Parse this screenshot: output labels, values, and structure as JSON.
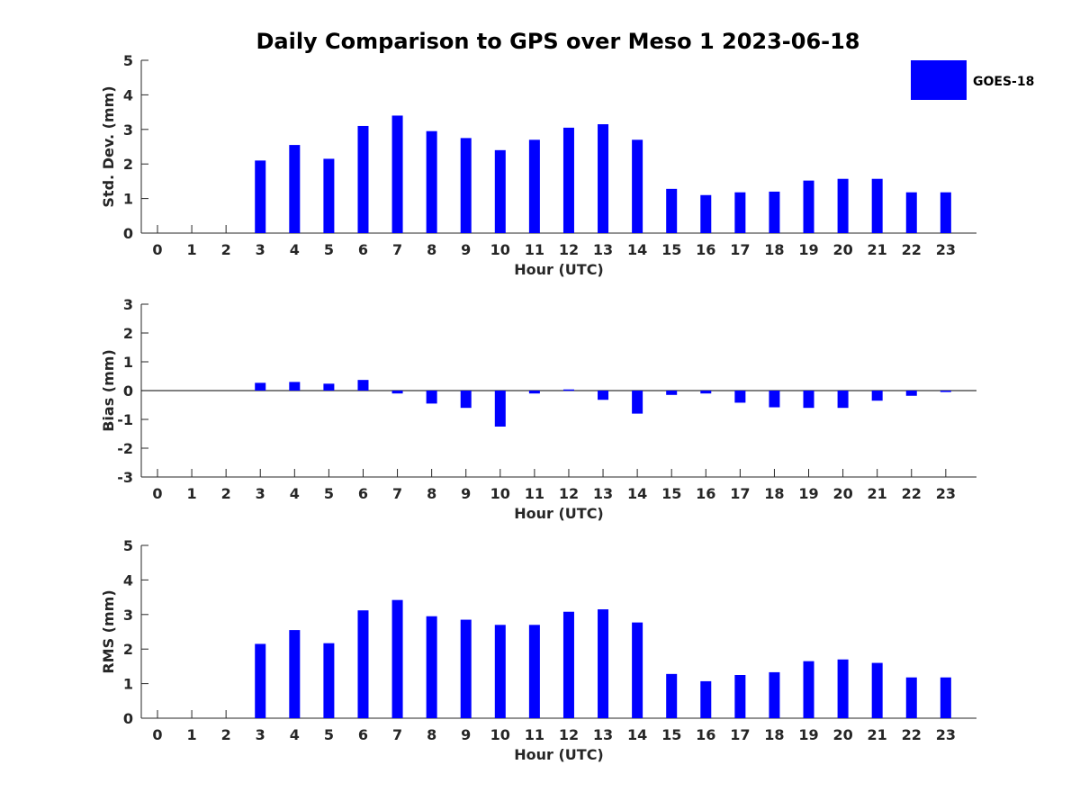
{
  "figure_title": "Daily Comparison to GPS over Meso 1 2023-06-18",
  "legend": {
    "label": "GOES-18",
    "color": "#0000ff",
    "placement": "top-right"
  },
  "chart_data": [
    {
      "type": "bar",
      "x": [
        0,
        1,
        2,
        3,
        4,
        5,
        6,
        7,
        8,
        9,
        10,
        11,
        12,
        13,
        14,
        15,
        16,
        17,
        18,
        19,
        20,
        21,
        22,
        23
      ],
      "xlabel": "Hour (UTC)",
      "ylabel": "Std. Dev. (mm)",
      "ylim": [
        0,
        5
      ],
      "yticks": [
        0,
        1,
        2,
        3,
        4,
        5
      ],
      "grid": false,
      "series": [
        {
          "name": "GOES-18",
          "color": "#0000ff",
          "values": [
            null,
            null,
            null,
            2.1,
            2.55,
            2.15,
            3.1,
            3.4,
            2.95,
            2.75,
            2.4,
            2.7,
            3.05,
            3.15,
            2.7,
            1.28,
            1.1,
            1.18,
            1.2,
            1.52,
            1.57,
            1.57,
            1.18,
            1.18
          ]
        }
      ]
    },
    {
      "type": "bar",
      "x": [
        0,
        1,
        2,
        3,
        4,
        5,
        6,
        7,
        8,
        9,
        10,
        11,
        12,
        13,
        14,
        15,
        16,
        17,
        18,
        19,
        20,
        21,
        22,
        23
      ],
      "xlabel": "Hour (UTC)",
      "ylabel": "Bias (mm)",
      "ylim": [
        -3,
        3
      ],
      "yticks": [
        -3,
        -2,
        -1,
        0,
        1,
        2,
        3
      ],
      "grid": false,
      "series": [
        {
          "name": "GOES-18",
          "color": "#0000ff",
          "values": [
            null,
            null,
            null,
            0.27,
            0.3,
            0.24,
            0.37,
            -0.1,
            -0.45,
            -0.6,
            -1.25,
            -0.1,
            0.04,
            -0.32,
            -0.8,
            -0.15,
            -0.1,
            -0.42,
            -0.58,
            -0.6,
            -0.6,
            -0.35,
            -0.18,
            -0.05
          ]
        }
      ]
    },
    {
      "type": "bar",
      "x": [
        0,
        1,
        2,
        3,
        4,
        5,
        6,
        7,
        8,
        9,
        10,
        11,
        12,
        13,
        14,
        15,
        16,
        17,
        18,
        19,
        20,
        21,
        22,
        23
      ],
      "xlabel": "Hour (UTC)",
      "ylabel": "RMS (mm)",
      "ylim": [
        0,
        5
      ],
      "yticks": [
        0,
        1,
        2,
        3,
        4,
        5
      ],
      "grid": false,
      "series": [
        {
          "name": "GOES-18",
          "color": "#0000ff",
          "values": [
            null,
            null,
            null,
            2.15,
            2.55,
            2.17,
            3.12,
            3.42,
            2.95,
            2.85,
            2.7,
            2.7,
            3.08,
            3.15,
            2.77,
            1.28,
            1.07,
            1.25,
            1.33,
            1.65,
            1.7,
            1.6,
            1.18,
            1.18
          ]
        }
      ]
    }
  ]
}
